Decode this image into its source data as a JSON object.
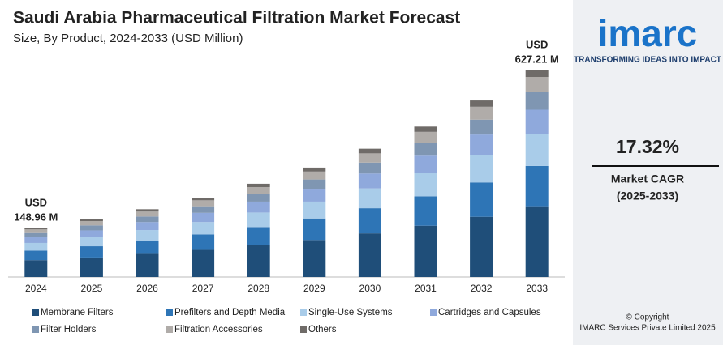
{
  "chart_data": {
    "type": "stacked_bar",
    "title": "Saudi Arabia Pharmaceutical Filtration Market Forecast",
    "subtitle": "Size, By Product, 2024-2033 (USD Million)",
    "categories": [
      "2024",
      "2025",
      "2026",
      "2027",
      "2028",
      "2029",
      "2030",
      "2031",
      "2032",
      "2033"
    ],
    "series": [
      {
        "name": "Membrane Filters",
        "color": "#1f4e79",
        "values": [
          51,
          59,
          70,
          82,
          96,
          112,
          132,
          155,
          182,
          214
        ]
      },
      {
        "name": "Prefilters and Depth Media",
        "color": "#2e75b6",
        "values": [
          29,
          34,
          40,
          47,
          55,
          65,
          76,
          89,
          104,
          122
        ]
      },
      {
        "name": "Single-Use Systems",
        "color": "#a9cce9",
        "values": [
          23,
          27,
          32,
          37,
          44,
          51,
          60,
          70,
          83,
          97
        ]
      },
      {
        "name": "Cartridges and Capsules",
        "color": "#8fa9dc",
        "values": [
          17,
          21,
          24,
          28,
          33,
          39,
          45,
          53,
          62,
          73
        ]
      },
      {
        "name": "Filter Holders",
        "color": "#7f96b2",
        "values": [
          13,
          15,
          17,
          20,
          24,
          28,
          33,
          39,
          45,
          53
        ]
      },
      {
        "name": "Filtration Accessories",
        "color": "#b0aca9",
        "values": [
          11,
          13,
          15,
          18,
          20,
          24,
          28,
          33,
          39,
          46
        ]
      },
      {
        "name": "Others",
        "color": "#6f6b68",
        "values": [
          5,
          6,
          7,
          8,
          10,
          12,
          14,
          16,
          19,
          22
        ]
      }
    ],
    "ylim": [
      0,
      740
    ],
    "annotations": [
      {
        "category": "2024",
        "text": [
          "USD",
          "148.96 M"
        ]
      },
      {
        "category": "2033",
        "text": [
          "USD",
          "627.21 M"
        ]
      }
    ]
  },
  "sidebar": {
    "logo": "imarc",
    "tagline": "TRANSFORMING IDEAS INTO IMPACT",
    "cagr": "17.32%",
    "cagr_label": "Market CAGR",
    "cagr_period": "(2025-2033)",
    "copyright": "© Copyright",
    "company": "IMARC Services Private Limited 2025"
  }
}
